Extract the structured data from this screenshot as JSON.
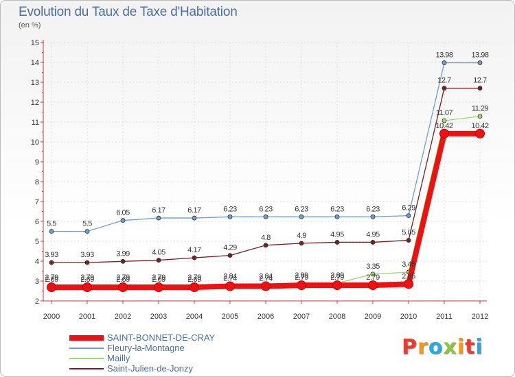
{
  "header": {
    "title": "Evolution du Taux de Taxe d'Habitation",
    "subtitle": "(en %)"
  },
  "logo": {
    "letters": [
      "P",
      "r",
      "o",
      "x",
      "i",
      "t",
      "i"
    ],
    "colors": [
      "#e63d2f",
      "#f39c12",
      "#27a9e1",
      "#8cc63f",
      "#f39c12",
      "#e63d2f",
      "#27a9e1"
    ]
  },
  "chart_data": {
    "type": "line",
    "title": "Evolution du Taux de Taxe d'Habitation",
    "ylabel": "(en %)",
    "xlabel": "",
    "ylim": [
      2,
      15
    ],
    "yticks": [
      2,
      3,
      4,
      5,
      6,
      7,
      8,
      9,
      10,
      11,
      12,
      13,
      14,
      15
    ],
    "categories": [
      "2000",
      "2001",
      "2002",
      "2003",
      "2004",
      "2005",
      "2006",
      "2007",
      "2008",
      "2009",
      "2010",
      "2011",
      "2012"
    ],
    "legend_position": "bottom-left",
    "series": [
      {
        "name": "SAINT-BONNET-DE-CRAY",
        "color": "#ee1111",
        "values": [
          2.69,
          2.69,
          2.69,
          2.69,
          2.69,
          2.74,
          2.74,
          2.79,
          2.79,
          2.79,
          2.85,
          10.42,
          10.42
        ],
        "labels": [
          "2.69",
          "2.69",
          "2.69",
          "2.69",
          "2.69",
          "2.74",
          "2.74",
          "2.79",
          "2.79",
          "2.79",
          "2.85",
          "10.42",
          "10.42"
        ]
      },
      {
        "name": "Fleury-la-Montagne",
        "color": "#6f9fd0",
        "values": [
          5.5,
          5.5,
          6.05,
          6.17,
          6.17,
          6.23,
          6.23,
          6.23,
          6.23,
          6.23,
          6.29,
          13.98,
          13.98
        ],
        "labels": [
          "5.5",
          "5.5",
          "6.05",
          "6.17",
          "6.17",
          "6.23",
          "6.23",
          "6.23",
          "6.23",
          "6.23",
          "6.29",
          "13.98",
          "13.98"
        ]
      },
      {
        "name": "Mailly",
        "color": "#99dd66",
        "values": [
          2.79,
          2.79,
          2.79,
          2.79,
          2.79,
          2.84,
          2.84,
          2.89,
          2.89,
          3.35,
          3.45,
          11.07,
          11.29
        ],
        "labels": [
          "2.79",
          "2.79",
          "2.79",
          "2.79",
          "2.79",
          "2.84",
          "2.84",
          "2.89",
          "2.89",
          "3.35",
          "3.45",
          "11.07",
          "11.29"
        ]
      },
      {
        "name": "Saint-Julien-de-Jonzy",
        "color": "#7a1f1f",
        "values": [
          3.93,
          3.93,
          3.99,
          4.05,
          4.17,
          4.29,
          4.8,
          4.9,
          4.95,
          4.95,
          5.05,
          12.7,
          12.7
        ],
        "labels": [
          "3.93",
          "3.93",
          "3.99",
          "4.05",
          "4.17",
          "4.29",
          "4.8",
          "4.9",
          "4.95",
          "4.95",
          "5.05",
          "12.7",
          "12.7"
        ]
      }
    ]
  }
}
